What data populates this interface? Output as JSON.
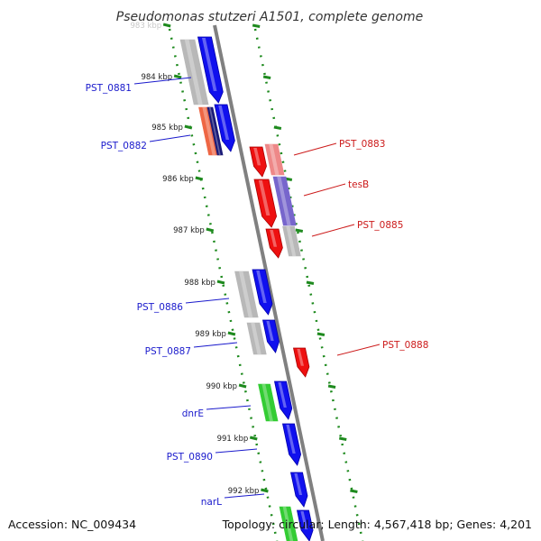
{
  "title": "Pseudomonas stutzeri A1501, complete genome",
  "accession": "Accession: NC_009434",
  "topology": "Topology: circular; Length: 4,567,418 bp; Genes: 4,201",
  "colors": {
    "backbone": "#808080",
    "ticks": "#1e8a1e",
    "forward_cds": "#1010ee",
    "reverse_cds": "#ee1010",
    "rna": "#33cc33",
    "label_forward": "#1a1acc",
    "label_reverse": "#cc1a1a"
  },
  "ticks": [
    {
      "label": "983 kbp"
    },
    {
      "label": "984 kbp"
    },
    {
      "label": "985 kbp"
    },
    {
      "label": "986 kbp"
    },
    {
      "label": "987 kbp"
    },
    {
      "label": "988 kbp"
    },
    {
      "label": "989 kbp"
    },
    {
      "label": "990 kbp"
    },
    {
      "label": "991 kbp"
    },
    {
      "label": "992 kbp"
    }
  ],
  "left_labels": [
    {
      "name": "PST_0881"
    },
    {
      "name": "PST_0882"
    },
    {
      "name": "PST_0886"
    },
    {
      "name": "PST_0887"
    },
    {
      "name": "dnrE"
    },
    {
      "name": "PST_0890"
    },
    {
      "name": "narL"
    }
  ],
  "right_labels": [
    {
      "name": "PST_0883"
    },
    {
      "name": "tesB"
    },
    {
      "name": "PST_0885"
    },
    {
      "name": "PST_0888"
    }
  ]
}
